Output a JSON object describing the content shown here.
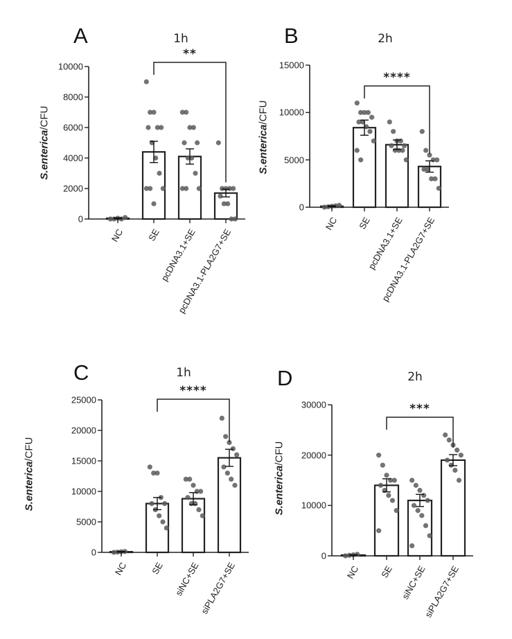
{
  "chart_data": [
    {
      "panel": "A",
      "type": "bar",
      "title": "1h",
      "ylabel_italic": "S.enterica",
      "ylabel_rest": "/CFU",
      "ylim": [
        0,
        10000
      ],
      "yticks": [
        "0",
        "2000",
        "4000",
        "6000",
        "8000",
        "10000"
      ],
      "categories": [
        "NC",
        "SE",
        "pcDNA3.1+SE",
        "pcDNA3.1-PLA2G7+SE"
      ],
      "values": [
        50,
        4400,
        4100,
        1700
      ],
      "errors": [
        30,
        700,
        500,
        250
      ],
      "points": [
        [
          0,
          0,
          50,
          0,
          100
        ],
        [
          9000,
          7000,
          7000,
          6000,
          6000,
          6000,
          5000,
          4000,
          3000,
          2000,
          2000,
          2000,
          1000
        ],
        [
          7000,
          7000,
          6000,
          6000,
          5000,
          5000,
          4000,
          4000,
          3000,
          2000,
          2000,
          2000
        ],
        [
          5000,
          2000,
          2000,
          2000,
          2000,
          1500,
          1000,
          1000,
          0,
          0
        ]
      ],
      "significance": {
        "from": 1,
        "to": 3,
        "label": "**"
      },
      "grid": false
    },
    {
      "panel": "B",
      "type": "bar",
      "title": "2h",
      "ylabel_italic": "S.enterica",
      "ylabel_rest": "/CFU",
      "ylim": [
        0,
        15000
      ],
      "yticks": [
        "0",
        "5000",
        "10000",
        "15000"
      ],
      "categories": [
        "NC",
        "SE",
        "pcDNA3.1+SE",
        "pcDNA3.1-PLA2G7+SE"
      ],
      "values": [
        100,
        8400,
        6600,
        4300
      ],
      "errors": [
        50,
        800,
        500,
        600
      ],
      "points": [
        [
          0,
          50,
          100,
          150,
          200
        ],
        [
          11000,
          10000,
          10000,
          10000,
          9500,
          9000,
          9000,
          8500,
          8000,
          7000,
          6000,
          5000
        ],
        [
          9000,
          8000,
          7000,
          7000,
          6500,
          6500,
          6000,
          6000,
          6000,
          5000
        ],
        [
          8000,
          6000,
          5500,
          5000,
          5000,
          4000,
          4000,
          3000,
          3000,
          2000
        ]
      ],
      "significance": {
        "from": 1,
        "to": 3,
        "label": "****"
      },
      "grid": false
    },
    {
      "panel": "C",
      "type": "bar",
      "title": "1h",
      "ylabel_italic": "S.enterica",
      "ylabel_rest": "/CFU",
      "ylim": [
        0,
        25000
      ],
      "yticks": [
        "0",
        "5000",
        "10000",
        "15000",
        "20000",
        "25000"
      ],
      "categories": [
        "NC",
        "SE",
        "siNC+SE",
        "siPLA2G7+SE"
      ],
      "values": [
        100,
        8000,
        8800,
        15500
      ],
      "errors": [
        50,
        1000,
        1000,
        1400
      ],
      "points": [
        [
          0,
          50,
          100,
          150
        ],
        [
          14000,
          13000,
          13000,
          9000,
          8000,
          8000,
          7000,
          6000,
          5000,
          4000
        ],
        [
          12000,
          12000,
          11000,
          10000,
          10000,
          9000,
          8000,
          8000,
          7000,
          6000
        ],
        [
          22000,
          19000,
          18000,
          17000,
          16000,
          14000,
          13000,
          12000,
          11000
        ]
      ],
      "significance": {
        "from": 1,
        "to": 3,
        "label": "****"
      },
      "grid": false
    },
    {
      "panel": "D",
      "type": "bar",
      "title": "2h",
      "ylabel_italic": "S.enterica",
      "ylabel_rest": "/CFU",
      "ylim": [
        0,
        30000
      ],
      "yticks": [
        "0",
        "10000",
        "20000",
        "30000"
      ],
      "categories": [
        "NC",
        "SE",
        "siNC+SE",
        "siPLA2G7+SE"
      ],
      "values": [
        150,
        14000,
        11000,
        19000
      ],
      "errors": [
        50,
        1300,
        1200,
        1100
      ],
      "points": [
        [
          0,
          100,
          200,
          300
        ],
        [
          20000,
          18000,
          16000,
          15000,
          15000,
          14000,
          13000,
          12000,
          11000,
          9000,
          5000
        ],
        [
          15000,
          14000,
          13000,
          12000,
          11000,
          10000,
          9000,
          8000,
          6000,
          4000,
          2000
        ],
        [
          24000,
          23000,
          22000,
          21000,
          20000,
          19000,
          18000,
          17000,
          15000
        ]
      ],
      "significance": {
        "from": 1,
        "to": 3,
        "label": "***"
      },
      "grid": false
    }
  ]
}
